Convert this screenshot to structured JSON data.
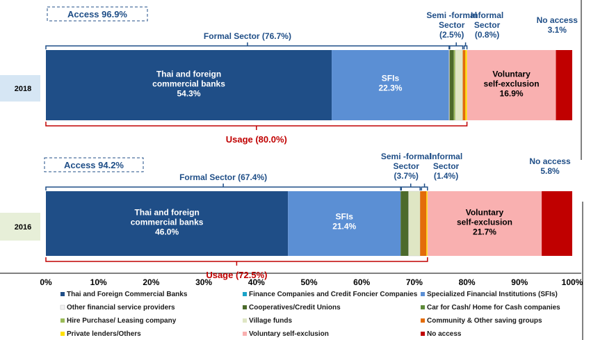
{
  "chart_data": {
    "type": "bar",
    "orientation": "horizontal",
    "stacked": true,
    "categories": [
      "2018",
      "2016"
    ],
    "xlim": [
      0,
      100
    ],
    "xticks": [
      "0%",
      "10%",
      "20%",
      "30%",
      "40%",
      "50%",
      "60%",
      "70%",
      "80%",
      "90%",
      "100%"
    ],
    "grid": false,
    "legend_position": "bottom",
    "series": [
      {
        "name": "Thai and Foreign Commercial Banks",
        "color": "#1f4e87",
        "values": [
          54.3,
          46.0
        ]
      },
      {
        "name": "Finance Companies and Credit Foncier Companies",
        "color": "#1aa3c8",
        "values": [
          0,
          0
        ]
      },
      {
        "name": "Specialized Financial Institutions (SFIs)",
        "color": "#5b8fd4",
        "values": [
          22.3,
          21.4
        ]
      },
      {
        "name": "Other financial service providers",
        "color": "#f2f2f2",
        "values": [
          0.1,
          0
        ]
      },
      {
        "name": "Cooperatives/Credit Unions",
        "color": "#4c6a2b",
        "values": [
          0.8,
          1.5
        ]
      },
      {
        "name": "Car for Cash/ Home for Cash companies",
        "color": "#5e8a3a",
        "values": [
          0,
          0
        ]
      },
      {
        "name": "Hire Purchase/ Leasing company",
        "color": "#9bbb59",
        "values": [
          0.3,
          0
        ]
      },
      {
        "name": "Village funds",
        "color": "#dfe6c4",
        "values": [
          1.4,
          2.2
        ]
      },
      {
        "name": "Community & Other saving groups",
        "color": "#e36c0a",
        "values": [
          0.5,
          1.2
        ]
      },
      {
        "name": "Private lenders/Others",
        "color": "#ffe000",
        "values": [
          0.3,
          0.2
        ]
      },
      {
        "name": "Voluntary self-exclusion",
        "color": "#f9b0b0",
        "values": [
          16.9,
          21.7
        ]
      },
      {
        "name": "No access",
        "color": "#c00000",
        "values": [
          3.1,
          5.8
        ]
      }
    ],
    "bar_labels": {
      "2018": {
        "banks": [
          "Thai and foreign",
          "commercial banks",
          "54.3%"
        ],
        "sfis": [
          "SFIs",
          "22.3%"
        ],
        "vse": [
          "Voluntary",
          "self-exclusion",
          "16.9%"
        ]
      },
      "2016": {
        "banks": [
          "Thai and foreign",
          "commercial banks",
          "46.0%"
        ],
        "sfis": [
          "SFIs",
          "21.4%"
        ],
        "vse": [
          "Voluntary",
          "self-exclusion",
          "21.7%"
        ]
      }
    },
    "annotations": {
      "2018": {
        "access": "Access 96.9%",
        "formal": "Formal Sector (76.7%)",
        "semi": [
          "Semi -formal",
          "Sector",
          "(2.5%)"
        ],
        "informal": [
          "Informal",
          "Sector",
          "(0.8%)"
        ],
        "noaccess": [
          "No access",
          "3.1%"
        ],
        "usage": "Usage (80.0%)"
      },
      "2016": {
        "access": "Access 94.2%",
        "formal": "Formal Sector (67.4%)",
        "semi": [
          "Semi -formal",
          "Sector",
          "(3.7%)"
        ],
        "informal": [
          "Informal",
          "Sector",
          "(1.4%)"
        ],
        "noaccess": [
          "No access",
          "5.8%"
        ],
        "usage": "Usage (72.5%)"
      }
    }
  }
}
